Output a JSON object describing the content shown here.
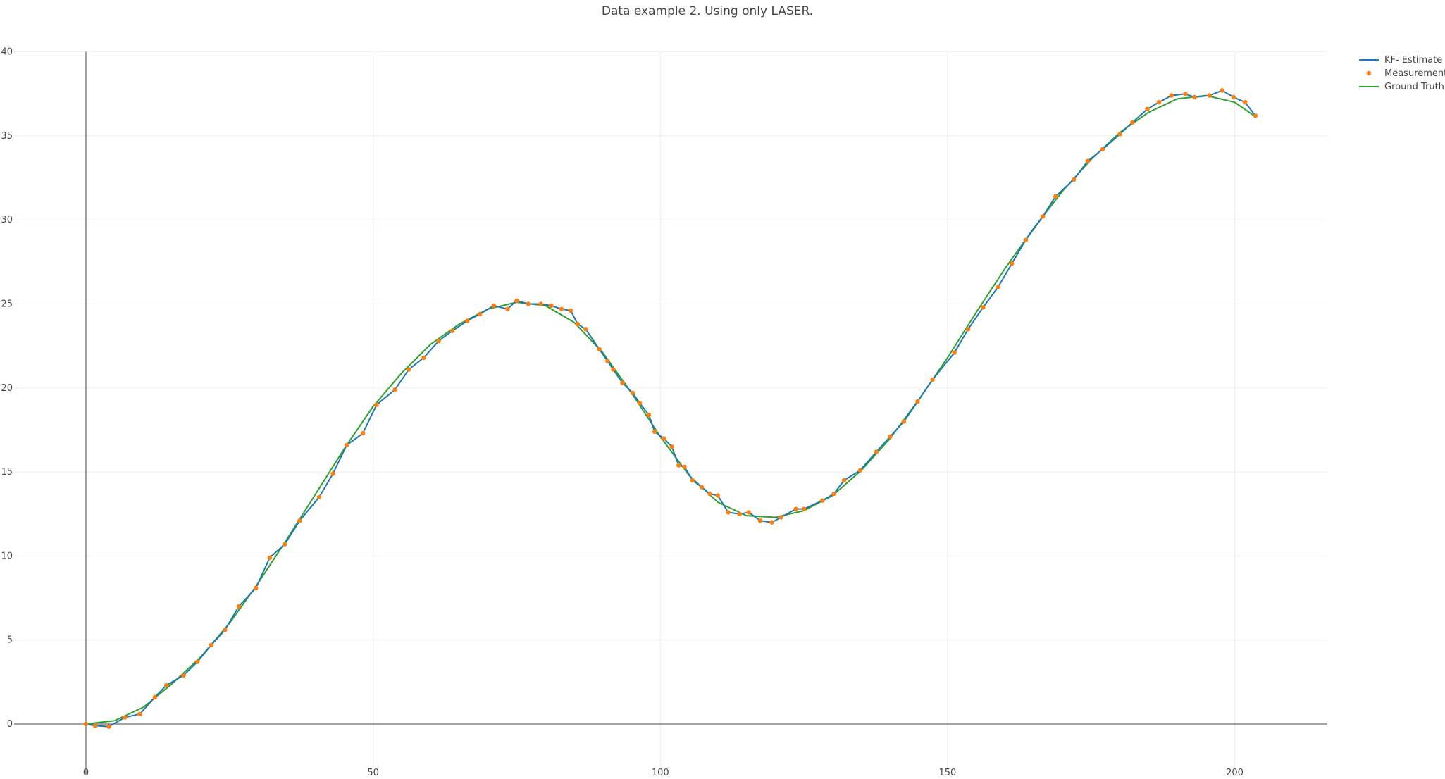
{
  "chart_data": {
    "type": "line",
    "title": "Data example 2. Using only LASER.",
    "xlabel": "",
    "ylabel": "",
    "xlim": [
      -5,
      217
    ],
    "ylim": [
      -3,
      40
    ],
    "x_ticks": [
      0,
      50,
      100,
      150,
      200
    ],
    "y_ticks": [
      0,
      5,
      10,
      15,
      20,
      25,
      30,
      35,
      40
    ],
    "grid": true,
    "legend_position": "top-right",
    "series": [
      {
        "name": "KF- Estimate",
        "mode": "lines",
        "color": "#1f77b4",
        "points": [
          [
            0,
            0
          ],
          [
            1.6,
            -0.1
          ],
          [
            4,
            -0.15
          ],
          [
            6.8,
            0.4
          ],
          [
            9.4,
            0.6
          ],
          [
            12,
            1.6
          ],
          [
            14,
            2.3
          ],
          [
            17,
            2.9
          ],
          [
            19.4,
            3.7
          ],
          [
            21.8,
            4.7
          ],
          [
            24.2,
            5.6
          ],
          [
            26.6,
            7.0
          ],
          [
            29.6,
            8.1
          ],
          [
            32,
            9.9
          ],
          [
            34.6,
            10.7
          ],
          [
            37.2,
            12.1
          ],
          [
            40.6,
            13.5
          ],
          [
            43,
            14.9
          ],
          [
            45.4,
            16.6
          ],
          [
            48.2,
            17.3
          ],
          [
            50.6,
            19.0
          ],
          [
            53.8,
            19.9
          ],
          [
            56.2,
            21.1
          ],
          [
            58.8,
            21.8
          ],
          [
            61.4,
            22.8
          ],
          [
            63.8,
            23.4
          ],
          [
            66.4,
            24.0
          ],
          [
            68.6,
            24.4
          ],
          [
            71,
            24.9
          ],
          [
            73.4,
            24.7
          ],
          [
            75,
            25.2
          ],
          [
            77,
            25.0
          ],
          [
            79.2,
            25.0
          ],
          [
            81,
            24.9
          ],
          [
            82.8,
            24.7
          ],
          [
            84.4,
            24.6
          ],
          [
            85.6,
            23.8
          ],
          [
            87,
            23.5
          ],
          [
            89.4,
            22.3
          ],
          [
            90.8,
            21.6
          ],
          [
            91.8,
            21.1
          ],
          [
            93.4,
            20.3
          ],
          [
            95.2,
            19.7
          ],
          [
            96.4,
            19.1
          ],
          [
            98,
            18.4
          ],
          [
            99,
            17.4
          ],
          [
            100.6,
            17.0
          ],
          [
            102,
            16.5
          ],
          [
            103.2,
            15.4
          ],
          [
            104.2,
            15.3
          ],
          [
            105.6,
            14.5
          ],
          [
            107.2,
            14.1
          ],
          [
            108.6,
            13.7
          ],
          [
            110,
            13.6
          ],
          [
            111.8,
            12.6
          ],
          [
            113.8,
            12.5
          ],
          [
            115.4,
            12.6
          ],
          [
            117.4,
            12.1
          ],
          [
            119.4,
            12.0
          ],
          [
            121,
            12.3
          ],
          [
            123.6,
            12.8
          ],
          [
            125,
            12.8
          ],
          [
            128.2,
            13.3
          ],
          [
            130.2,
            13.7
          ],
          [
            132,
            14.5
          ],
          [
            134.8,
            15.1
          ],
          [
            137.6,
            16.2
          ],
          [
            140,
            17.1
          ],
          [
            142.4,
            18.0
          ],
          [
            144.8,
            19.2
          ],
          [
            147.4,
            20.5
          ],
          [
            151.2,
            22.1
          ],
          [
            153.6,
            23.5
          ],
          [
            156.2,
            24.8
          ],
          [
            158.8,
            26.0
          ],
          [
            161.2,
            27.4
          ],
          [
            163.6,
            28.8
          ],
          [
            166.6,
            30.2
          ],
          [
            168.8,
            31.4
          ],
          [
            172,
            32.4
          ],
          [
            174.4,
            33.5
          ],
          [
            177,
            34.2
          ],
          [
            180,
            35.1
          ],
          [
            182.2,
            35.8
          ],
          [
            184.8,
            36.6
          ],
          [
            186.8,
            37.0
          ],
          [
            189,
            37.4
          ],
          [
            191.4,
            37.5
          ],
          [
            193,
            37.3
          ],
          [
            195.6,
            37.4
          ],
          [
            197.8,
            37.7
          ],
          [
            199.8,
            37.3
          ],
          [
            201.8,
            37.0
          ],
          [
            203.6,
            36.2
          ]
        ]
      },
      {
        "name": "Measurements",
        "mode": "markers",
        "color": "#ff7f0e",
        "points": [
          [
            0,
            0
          ],
          [
            1.6,
            -0.1
          ],
          [
            4,
            -0.15
          ],
          [
            6.8,
            0.4
          ],
          [
            9.4,
            0.6
          ],
          [
            12,
            1.6
          ],
          [
            14,
            2.3
          ],
          [
            17,
            2.9
          ],
          [
            19.4,
            3.7
          ],
          [
            21.8,
            4.7
          ],
          [
            24.2,
            5.6
          ],
          [
            26.6,
            7.0
          ],
          [
            29.6,
            8.1
          ],
          [
            32,
            9.9
          ],
          [
            34.6,
            10.7
          ],
          [
            37.2,
            12.1
          ],
          [
            40.6,
            13.5
          ],
          [
            43,
            14.9
          ],
          [
            45.4,
            16.6
          ],
          [
            48.2,
            17.3
          ],
          [
            50.6,
            19.0
          ],
          [
            53.8,
            19.9
          ],
          [
            56.2,
            21.1
          ],
          [
            58.8,
            21.8
          ],
          [
            61.4,
            22.8
          ],
          [
            63.8,
            23.4
          ],
          [
            66.4,
            24.0
          ],
          [
            68.6,
            24.4
          ],
          [
            71,
            24.9
          ],
          [
            73.4,
            24.7
          ],
          [
            75,
            25.2
          ],
          [
            77,
            25.0
          ],
          [
            79.2,
            25.0
          ],
          [
            81,
            24.9
          ],
          [
            82.8,
            24.7
          ],
          [
            84.4,
            24.6
          ],
          [
            85.6,
            23.8
          ],
          [
            87,
            23.5
          ],
          [
            89.4,
            22.3
          ],
          [
            90.8,
            21.6
          ],
          [
            91.8,
            21.1
          ],
          [
            93.4,
            20.3
          ],
          [
            95.2,
            19.7
          ],
          [
            96.4,
            19.1
          ],
          [
            98,
            18.4
          ],
          [
            99,
            17.4
          ],
          [
            100.6,
            17.0
          ],
          [
            102,
            16.5
          ],
          [
            103.2,
            15.4
          ],
          [
            104.2,
            15.3
          ],
          [
            105.6,
            14.5
          ],
          [
            107.2,
            14.1
          ],
          [
            108.6,
            13.7
          ],
          [
            110,
            13.6
          ],
          [
            111.8,
            12.6
          ],
          [
            113.8,
            12.5
          ],
          [
            115.4,
            12.6
          ],
          [
            117.4,
            12.1
          ],
          [
            119.4,
            12.0
          ],
          [
            121,
            12.3
          ],
          [
            123.6,
            12.8
          ],
          [
            125,
            12.8
          ],
          [
            128.2,
            13.3
          ],
          [
            130.2,
            13.7
          ],
          [
            132,
            14.5
          ],
          [
            134.8,
            15.1
          ],
          [
            137.6,
            16.2
          ],
          [
            140,
            17.1
          ],
          [
            142.4,
            18.0
          ],
          [
            144.8,
            19.2
          ],
          [
            147.4,
            20.5
          ],
          [
            151.2,
            22.1
          ],
          [
            153.6,
            23.5
          ],
          [
            156.2,
            24.8
          ],
          [
            158.8,
            26.0
          ],
          [
            161.2,
            27.4
          ],
          [
            163.6,
            28.8
          ],
          [
            166.6,
            30.2
          ],
          [
            168.8,
            31.4
          ],
          [
            172,
            32.4
          ],
          [
            174.4,
            33.5
          ],
          [
            177,
            34.2
          ],
          [
            180,
            35.1
          ],
          [
            182.2,
            35.8
          ],
          [
            184.8,
            36.6
          ],
          [
            186.8,
            37.0
          ],
          [
            189,
            37.4
          ],
          [
            191.4,
            37.5
          ],
          [
            193,
            37.3
          ],
          [
            195.6,
            37.4
          ],
          [
            197.8,
            37.7
          ],
          [
            199.8,
            37.3
          ],
          [
            201.8,
            37.0
          ],
          [
            203.6,
            36.2
          ]
        ]
      },
      {
        "name": "Ground Truth",
        "mode": "lines",
        "color": "#2ca02c",
        "points": [
          [
            0,
            0
          ],
          [
            5,
            0.2
          ],
          [
            10,
            1.0
          ],
          [
            15,
            2.4
          ],
          [
            20,
            4.0
          ],
          [
            25,
            6.0
          ],
          [
            30,
            8.4
          ],
          [
            35,
            11.0
          ],
          [
            40,
            13.7
          ],
          [
            45,
            16.4
          ],
          [
            50,
            18.9
          ],
          [
            55,
            20.9
          ],
          [
            60,
            22.6
          ],
          [
            65,
            23.8
          ],
          [
            70,
            24.7
          ],
          [
            75,
            25.1
          ],
          [
            80,
            24.9
          ],
          [
            85,
            23.9
          ],
          [
            90,
            22.1
          ],
          [
            95,
            19.7
          ],
          [
            100,
            17.1
          ],
          [
            105,
            14.8
          ],
          [
            110,
            13.2
          ],
          [
            115,
            12.4
          ],
          [
            120,
            12.3
          ],
          [
            125,
            12.7
          ],
          [
            130,
            13.6
          ],
          [
            135,
            15.1
          ],
          [
            140,
            17.0
          ],
          [
            145,
            19.3
          ],
          [
            150,
            21.8
          ],
          [
            155,
            24.5
          ],
          [
            160,
            27.1
          ],
          [
            165,
            29.5
          ],
          [
            170,
            31.7
          ],
          [
            175,
            33.6
          ],
          [
            180,
            35.2
          ],
          [
            185,
            36.4
          ],
          [
            190,
            37.2
          ],
          [
            195,
            37.4
          ],
          [
            200,
            37.0
          ],
          [
            203.8,
            36.1
          ]
        ]
      }
    ]
  }
}
